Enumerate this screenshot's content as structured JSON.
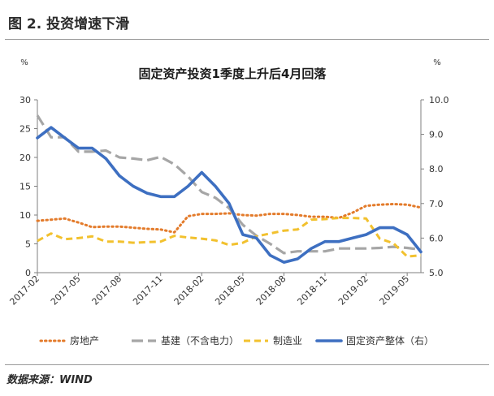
{
  "figure": {
    "title": "图 2.  投资增速下滑",
    "source": "数据来源：WIND"
  },
  "chart_data": {
    "type": "line",
    "title": "固定资产投资1季度上升后4月回落",
    "left_axis": {
      "unit": "%",
      "range": [
        0,
        30
      ],
      "ticks": [
        "0",
        "5",
        "10",
        "15",
        "20",
        "25",
        "30"
      ]
    },
    "right_axis": {
      "unit": "%",
      "range": [
        5.0,
        10.0
      ],
      "ticks": [
        "5.0",
        "6.0",
        "7.0",
        "8.0",
        "9.0",
        "10.0"
      ]
    },
    "x": [
      "2017-02",
      "2017-03",
      "2017-04",
      "2017-05",
      "2017-06",
      "2017-07",
      "2017-08",
      "2017-09",
      "2017-10",
      "2017-11",
      "2017-12",
      "2018-01",
      "2018-02",
      "2018-03",
      "2018-04",
      "2018-05",
      "2018-06",
      "2018-07",
      "2018-08",
      "2018-09",
      "2018-10",
      "2018-11",
      "2018-12",
      "2019-01",
      "2019-02",
      "2019-03",
      "2019-04",
      "2019-05",
      "2019-06"
    ],
    "x_tick_labels": [
      "2017-02",
      "2017-05",
      "2017-08",
      "2017-11",
      "2018-02",
      "2018-05",
      "2018-08",
      "2018-11",
      "2019-02",
      "2019-05"
    ],
    "grid": false,
    "legend_position": "bottom",
    "series": [
      {
        "name": "房地产",
        "axis": "left",
        "style": "dotted",
        "color": "#e37b2b",
        "values": [
          9,
          9.2,
          9.4,
          8.7,
          7.9,
          8,
          8,
          7.8,
          7.6,
          7.5,
          7,
          9.8,
          10.2,
          10.2,
          10.3,
          10,
          9.9,
          10.2,
          10.2,
          10,
          9.7,
          9.7,
          9.5,
          10.4,
          11.6,
          11.8,
          11.9,
          11.8,
          11.3
        ]
      },
      {
        "name": "基建（不含电力）",
        "axis": "left",
        "style": "dashed",
        "color": "#a6a6a6",
        "values": [
          27.3,
          23.5,
          23.5,
          21,
          21,
          21.2,
          20,
          19.8,
          19.5,
          20.1,
          18.8,
          16.7,
          14,
          13,
          11.2,
          8.3,
          6.4,
          5,
          3.4,
          3.7,
          3.7,
          3.7,
          4.2,
          4.2,
          4.2,
          4.3,
          4.5,
          4.3,
          4
        ]
      },
      {
        "name": "制造业",
        "axis": "left",
        "style": "dashed",
        "color": "#f2c12e",
        "values": [
          5.5,
          6.8,
          5.8,
          6,
          6.3,
          5.4,
          5.4,
          5.2,
          5.3,
          5.4,
          6.4,
          6.1,
          5.9,
          5.6,
          4.8,
          5.2,
          6.3,
          6.8,
          7.3,
          7.5,
          9.2,
          9.3,
          9.5,
          9.5,
          9.4,
          5.9,
          5.1,
          2.8,
          3
        ]
      },
      {
        "name": "固定资产整体（右）",
        "axis": "right",
        "style": "solid",
        "color": "#3d6fc1",
        "values": [
          8.9,
          9.2,
          8.9,
          8.6,
          8.6,
          8.3,
          7.8,
          7.5,
          7.3,
          7.2,
          7.2,
          7.5,
          7.9,
          7.5,
          7,
          6.1,
          6,
          5.5,
          5.3,
          5.4,
          5.7,
          5.9,
          5.9,
          6,
          6.1,
          6.3,
          6.3,
          6.1,
          5.6
        ]
      }
    ]
  }
}
